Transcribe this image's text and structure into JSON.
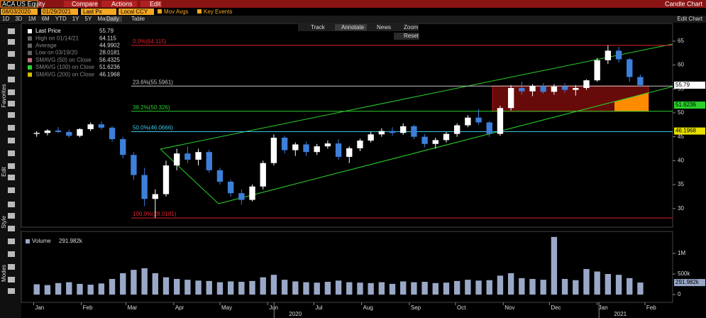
{
  "header": {
    "ticker": "ACA US Equity",
    "buttons": [
      "Compare",
      "Actions",
      "Edit"
    ],
    "title": "Candle Chart",
    "start": "08/03/2020",
    "end": "01/29/2021",
    "field": "Last Px",
    "currency": "Local CCY",
    "mov_avgs": "Mov Avgs",
    "key_events": "Key Events",
    "periods": [
      "1D",
      "3D",
      "1M",
      "6M",
      "YTD",
      "1Y",
      "5Y",
      "Max"
    ],
    "frequency": "Daily",
    "table": "Table",
    "edit_chart": "Edit Chart",
    "tools": [
      "Track",
      "Annotate",
      "News",
      "Zoom"
    ],
    "reset": "Reset",
    "side_labels": [
      "Favorites",
      "Edit",
      "Style",
      "Modes"
    ]
  },
  "chart_data": {
    "type": "candlestick",
    "up_color": "#ffffff",
    "down_color": "#3d7fd9",
    "x": [
      2,
      9,
      16,
      23,
      30,
      37,
      44,
      51,
      58,
      65,
      72,
      79,
      86,
      93,
      100,
      107,
      114,
      121,
      128,
      135,
      142,
      149,
      156,
      163,
      170,
      177,
      184,
      191,
      198,
      205,
      212,
      219,
      226,
      233,
      240,
      247,
      254,
      261,
      268,
      275,
      282,
      289,
      296,
      303,
      310,
      317,
      324,
      331,
      338,
      345,
      352,
      359,
      366,
      373,
      380,
      387,
      394
    ],
    "open": [
      45.6,
      45.8,
      46.3,
      46.0,
      45.2,
      46.6,
      47.6,
      46.9,
      44.5,
      41.2,
      37.0,
      32.0,
      33.0,
      39.0,
      41.5,
      40.2,
      41.8,
      38.0,
      35.6,
      33.2,
      31.8,
      34.6,
      39.5,
      44.8,
      42.2,
      43.4,
      41.8,
      43.0,
      43.6,
      40.8,
      42.6,
      44.2,
      45.5,
      46.2,
      45.8,
      47.2,
      45.0,
      43.5,
      44.3,
      45.6,
      47.4,
      49.0,
      48.0,
      45.6,
      51.0,
      55.2,
      54.5,
      55.6,
      54.4,
      55.5,
      54.8,
      55.2,
      56.8,
      61.0,
      63.0,
      61.2,
      57.5
    ],
    "high": [
      46.2,
      46.6,
      47.0,
      46.5,
      46.8,
      48.0,
      48.2,
      47.2,
      45.0,
      41.8,
      38.5,
      34.0,
      40.0,
      42.5,
      43.0,
      42.5,
      42.3,
      38.5,
      36.0,
      34.0,
      35.0,
      40.0,
      45.5,
      45.2,
      43.8,
      44.0,
      43.5,
      44.2,
      44.5,
      43.0,
      44.6,
      46.0,
      46.8,
      47.0,
      47.8,
      47.5,
      45.6,
      44.8,
      46.0,
      47.8,
      49.5,
      50.8,
      48.3,
      51.5,
      55.8,
      56.5,
      56.0,
      56.2,
      56.0,
      56.2,
      55.8,
      57.0,
      61.5,
      64.115,
      63.8,
      61.5,
      58.0
    ],
    "low": [
      45.0,
      45.3,
      45.8,
      44.8,
      44.9,
      46.2,
      46.5,
      44.0,
      40.5,
      36.0,
      30.5,
      28.0181,
      32.5,
      38.0,
      39.5,
      39.0,
      37.5,
      35.0,
      32.5,
      30.8,
      31.5,
      34.0,
      39.0,
      41.5,
      41.0,
      41.0,
      41.2,
      42.5,
      40.2,
      39.5,
      42.0,
      43.8,
      45.0,
      45.2,
      45.4,
      44.5,
      42.8,
      42.5,
      43.8,
      45.0,
      47.0,
      47.5,
      45.0,
      45.2,
      50.5,
      53.8,
      53.5,
      54.0,
      53.8,
      54.2,
      53.6,
      54.8,
      56.5,
      60.2,
      60.5,
      56.5,
      55.4
    ],
    "close": [
      45.8,
      46.3,
      46.0,
      45.2,
      46.6,
      47.6,
      46.9,
      44.5,
      41.2,
      37.0,
      32.0,
      33.0,
      39.0,
      41.5,
      40.2,
      41.8,
      38.0,
      35.6,
      33.2,
      31.8,
      34.6,
      39.5,
      44.8,
      42.2,
      43.4,
      41.8,
      43.0,
      43.6,
      40.8,
      42.6,
      44.2,
      45.5,
      46.2,
      45.8,
      47.2,
      45.0,
      43.5,
      44.3,
      45.6,
      47.4,
      49.0,
      48.0,
      45.6,
      51.0,
      55.2,
      54.5,
      55.6,
      54.4,
      55.5,
      54.8,
      55.2,
      56.8,
      61.0,
      63.0,
      61.2,
      57.5,
      55.79
    ],
    "xlim": [
      -8,
      415
    ],
    "ylim": [
      26.1,
      68.7
    ],
    "yticks": [
      30,
      35,
      40,
      45,
      50,
      55,
      60,
      65
    ],
    "xticks": [
      {
        "value": 0,
        "label": "Jan"
      },
      {
        "value": 31,
        "label": "Feb"
      },
      {
        "value": 60,
        "label": "Mar"
      },
      {
        "value": 91,
        "label": "Apr"
      },
      {
        "value": 121,
        "label": "May"
      },
      {
        "value": 152,
        "label": "Jun"
      },
      {
        "value": 182,
        "label": "Jul"
      },
      {
        "value": 213,
        "label": "Aug"
      },
      {
        "value": 244,
        "label": "Sep"
      },
      {
        "value": 274,
        "label": "Oct"
      },
      {
        "value": 305,
        "label": "Nov"
      },
      {
        "value": 335,
        "label": "Dec"
      },
      {
        "value": 366,
        "label": "Jan"
      },
      {
        "value": 397,
        "label": "Feb"
      }
    ],
    "year_ticks": [
      {
        "value": 170,
        "label": "2020"
      },
      {
        "value": 381,
        "label": "2021"
      }
    ],
    "legend": [
      {
        "name": "Last Price",
        "value": 55.79
      },
      {
        "name": "High on 01/14/21",
        "value": 64.115
      },
      {
        "name": "Average",
        "value": 44.9902
      },
      {
        "name": "Low on 03/19/20",
        "value": 28.0181
      },
      {
        "name": "SMAVG (50)  on Close",
        "value": 56.4325
      },
      {
        "name": "SMAVG (100)  on Close",
        "value": 51.6236
      },
      {
        "name": "SMAVG (200)  on Close",
        "value": 46.1968
      }
    ],
    "fib_levels": [
      {
        "label": "0.0%(64.115)",
        "value": 64.115,
        "color": "#e0202a"
      },
      {
        "label": "23.6%(55.5961)",
        "value": 55.5961,
        "color": "#c8c8c8"
      },
      {
        "label": "38.2%(50.326)",
        "value": 50.326,
        "color": "#2bd12b"
      },
      {
        "label": "50.0%(46.0666)",
        "value": 46.0666,
        "color": "#3cc8e6"
      },
      {
        "label": "100.0%(28.0181)",
        "value": 28.0181,
        "color": "#e0202a"
      }
    ],
    "volume": {
      "name": "Volume",
      "color": "#9aa8c8",
      "value_label": "291.982k",
      "ylim": [
        0,
        1500000
      ],
      "yticks": [
        0,
        {
          "value": 500000,
          "label": "500k"
        },
        {
          "value": 1000000,
          "label": "1M"
        }
      ],
      "values": [
        250000,
        230000,
        280000,
        300000,
        260000,
        240000,
        270000,
        380000,
        520000,
        600000,
        640000,
        520000,
        420000,
        380000,
        360000,
        340000,
        330000,
        300000,
        320000,
        310000,
        330000,
        420000,
        480000,
        360000,
        320000,
        300000,
        290000,
        310000,
        340000,
        300000,
        290000,
        280000,
        300000,
        260000,
        320000,
        300000,
        310000,
        280000,
        290000,
        330000,
        360000,
        340000,
        350000,
        460000,
        520000,
        400000,
        380000,
        360000,
        1400000,
        380000,
        350000,
        620000,
        560000,
        500000,
        480000,
        400000,
        291982
      ]
    }
  }
}
